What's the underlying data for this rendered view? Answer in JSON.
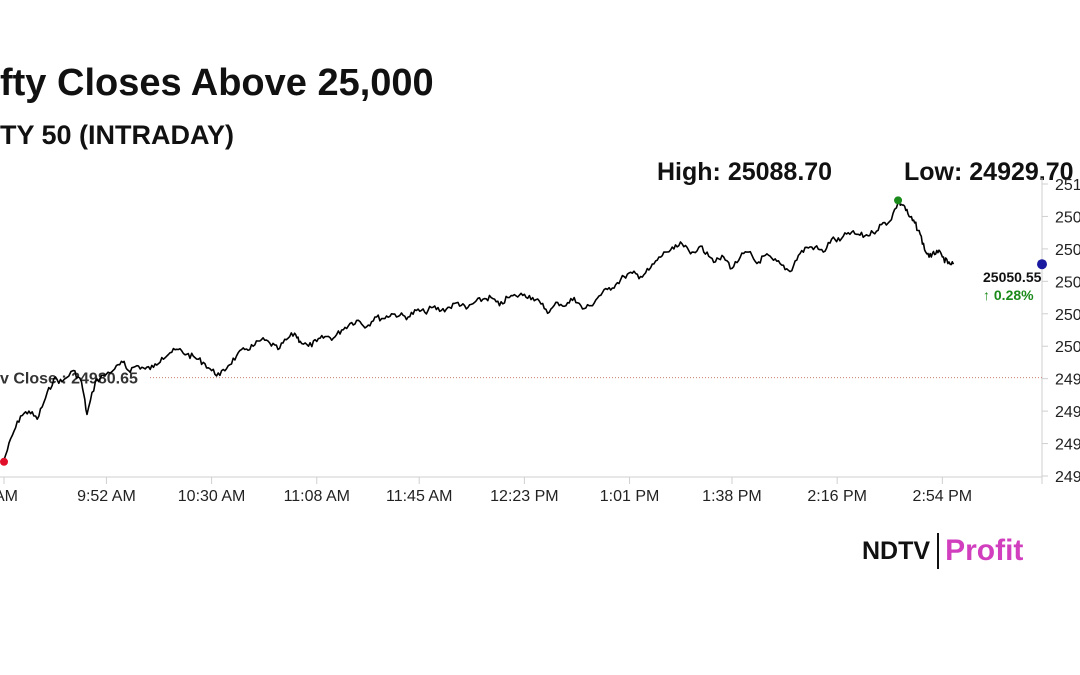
{
  "header": {
    "title": "fty Closes Above 25,000",
    "subtitle": "TY 50 (INTRADAY)"
  },
  "stats": {
    "high_text": "High: 25088.70",
    "low_text": "Low: 24929.70"
  },
  "brand": {
    "ndtv": "NDTV",
    "profit": "Profit",
    "ndtv_color": "#111111",
    "profit_color": "#d13fbf"
  },
  "colors": {
    "line": "#000000",
    "high_marker": "#1a8a1a",
    "low_marker": "#e0102a",
    "last_marker": "#1a1aa0",
    "change_up": "#1a8a1a",
    "prev_close_line": "#c88070"
  },
  "chart_data": {
    "type": "line",
    "title": "fty Closes Above 25,000",
    "subtitle": "TY 50 (INTRADAY)",
    "x_tick_labels": [
      "AM",
      "9:52 AM",
      "10:30 AM",
      "11:08 AM",
      "11:45 AM",
      "12:23 PM",
      "1:01 PM",
      "1:38 PM",
      "2:16 PM",
      "2:54 PM"
    ],
    "x_tick_minutes": [
      555,
      592,
      630,
      668,
      705,
      743,
      781,
      818,
      856,
      894
    ],
    "y_tick_labels": [
      "251",
      "250",
      "250",
      "250",
      "250",
      "250",
      "249",
      "249",
      "249",
      "249"
    ],
    "y_tick_values": [
      25100,
      25080,
      25060,
      25040,
      25020,
      25000,
      24980,
      24960,
      24940,
      24920
    ],
    "xlim_minutes": [
      555,
      930
    ],
    "ylim": [
      24920,
      25100
    ],
    "series": [
      {
        "x_minutes": [
          555,
          558,
          561,
          564,
          567,
          570,
          573,
          576,
          580,
          583,
          585,
          588,
          591,
          595,
          598,
          600,
          603,
          606,
          609,
          612,
          615,
          618,
          621,
          624,
          627,
          630,
          633,
          636,
          639,
          642,
          645,
          648,
          651,
          654,
          657,
          660,
          662,
          665,
          668,
          671,
          674,
          677,
          680,
          683,
          686,
          689,
          692,
          695,
          698,
          701,
          704,
          707,
          710,
          713,
          716,
          719,
          722,
          725,
          728,
          731,
          734,
          737,
          740,
          743,
          746,
          749,
          752,
          755,
          758,
          761,
          764,
          767,
          770,
          773,
          776,
          779,
          782,
          785,
          788,
          791,
          794,
          797,
          800,
          803,
          806,
          809,
          812,
          815,
          818,
          821,
          824,
          827,
          830,
          833,
          836,
          839,
          842,
          845,
          848,
          851,
          854,
          857,
          860,
          863,
          866,
          869,
          872,
          875,
          878,
          880,
          882,
          884,
          886,
          888,
          890,
          892,
          894,
          896,
          898
        ],
        "values": [
          24930,
          24945,
          24957,
          24960,
          24955,
          24968,
          24980,
          24978,
          24985,
          24978,
          24958,
          24978,
          24982,
          24986,
          24990,
          24985,
          24988,
          24986,
          24987,
          24993,
          24996,
          24998,
          24995,
          24993,
          24990,
          24985,
          24982,
          24988,
          24994,
          24998,
          25000,
          25004,
          25002,
          24998,
          25004,
          25008,
          25003,
          25000,
          25003,
          25006,
          25005,
          25010,
          25014,
          25016,
          25012,
          25018,
          25017,
          25020,
          25019,
          25018,
          25022,
          25021,
          25024,
          25022,
          25024,
          25027,
          25023,
          25027,
          25029,
          25030,
          25025,
          25030,
          25031,
          25032,
          25030,
          25026,
          25021,
          25027,
          25025,
          25030,
          25023,
          25025,
          25031,
          25035,
          25038,
          25043,
          25045,
          25043,
          25047,
          25053,
          25058,
          25060,
          25063,
          25057,
          25061,
          25058,
          25052,
          25055,
          25048,
          25055,
          25058,
          25051,
          25056,
          25053,
          25050,
          25046,
          25056,
          25061,
          25061,
          25058,
          25066,
          25065,
          25070,
          25069,
          25068,
          25070,
          25075,
          25077,
          25088.7,
          25087,
          25080,
          25076,
          25069,
          25058,
          25055,
          25059,
          25055,
          25051,
          25050.55
        ]
      }
    ],
    "high": 25088.7,
    "low": 24929.7,
    "last": 25050.55,
    "prev_close_value": 24980.65,
    "prev_close_label": "v Close : 24980.65",
    "last_label": "25050.55",
    "change_label": "↑ 0.28%",
    "legend": "none",
    "grid": false
  }
}
